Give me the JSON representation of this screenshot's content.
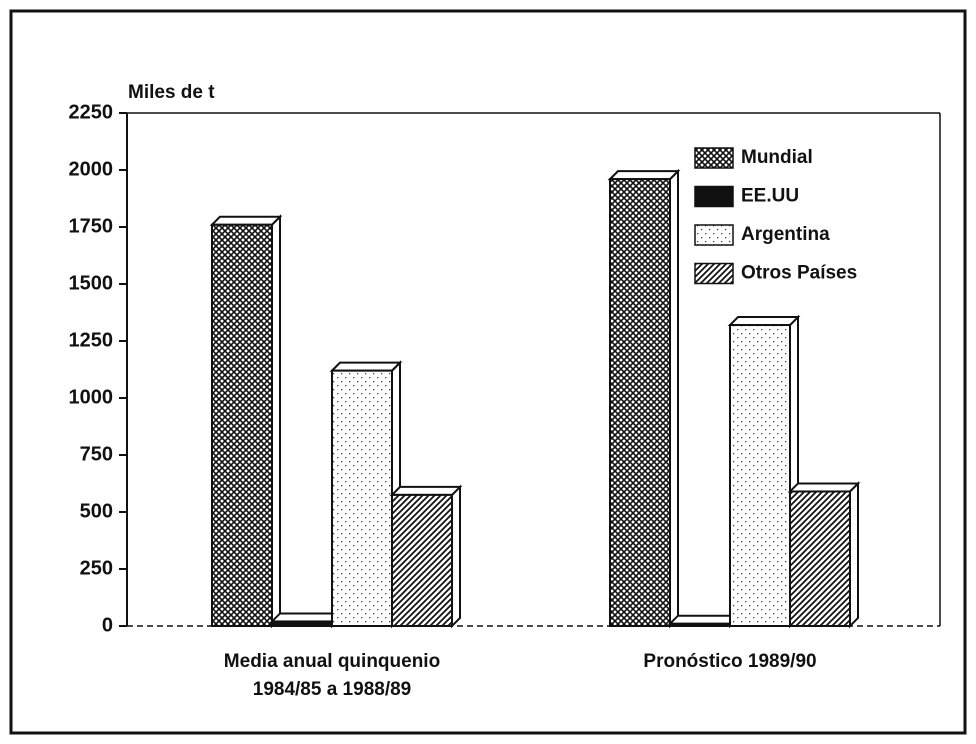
{
  "chart_data": {
    "type": "bar3d",
    "y_label": "Miles de t",
    "categories": [
      "Media anual quinquenio\n1984/85 a 1988/89",
      "Pronóstico 1989/90"
    ],
    "series": [
      {
        "name": "Mundial",
        "color": "#222",
        "pattern": "cross",
        "values": [
          1760,
          1960
        ]
      },
      {
        "name": "EE.UU",
        "color": "#111",
        "pattern": "solid",
        "values": [
          20,
          10
        ]
      },
      {
        "name": "Argentina",
        "color": "#777",
        "pattern": "dots",
        "values": [
          1120,
          1320
        ]
      },
      {
        "name": "Otros Países",
        "color": "#222",
        "pattern": "stripes",
        "values": [
          575,
          590
        ]
      }
    ],
    "ylim": [
      0,
      2250
    ],
    "yticks": [
      0,
      250,
      500,
      750,
      1000,
      1250,
      1500,
      1750,
      2000,
      2250
    ],
    "legend": "upper-right"
  }
}
